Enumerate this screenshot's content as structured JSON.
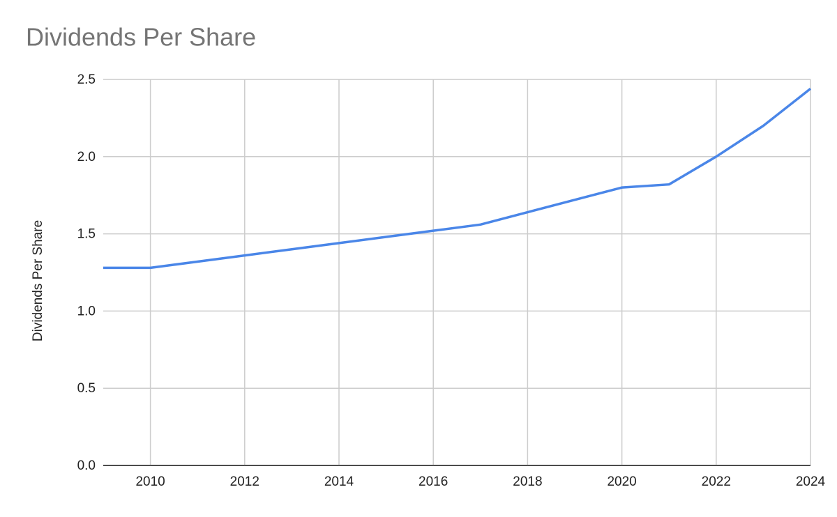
{
  "chart_data": {
    "type": "line",
    "title": "Dividends Per Share",
    "y_label": "Dividends Per Share",
    "x": [
      2009,
      2010,
      2011,
      2012,
      2013,
      2014,
      2015,
      2016,
      2017,
      2018,
      2019,
      2020,
      2021,
      2022,
      2023,
      2024
    ],
    "series": [
      {
        "name": "Dividends Per Share",
        "color": "#4a86e8",
        "values": [
          1.28,
          1.28,
          1.32,
          1.36,
          1.4,
          1.44,
          1.48,
          1.52,
          1.56,
          1.64,
          1.72,
          1.8,
          1.82,
          2.0,
          2.2,
          2.44
        ]
      }
    ],
    "xlim": [
      2009,
      2024
    ],
    "xticks": [
      2010,
      2012,
      2014,
      2016,
      2018,
      2020,
      2022,
      2024
    ],
    "ylim": [
      0,
      2.5
    ],
    "yticks": [
      {
        "value": 0,
        "label": "0.0"
      },
      0.5,
      {
        "value": 1,
        "label": "1.0"
      },
      1.5,
      {
        "value": 2,
        "label": "2.0"
      },
      2.5
    ],
    "grid": true
  }
}
